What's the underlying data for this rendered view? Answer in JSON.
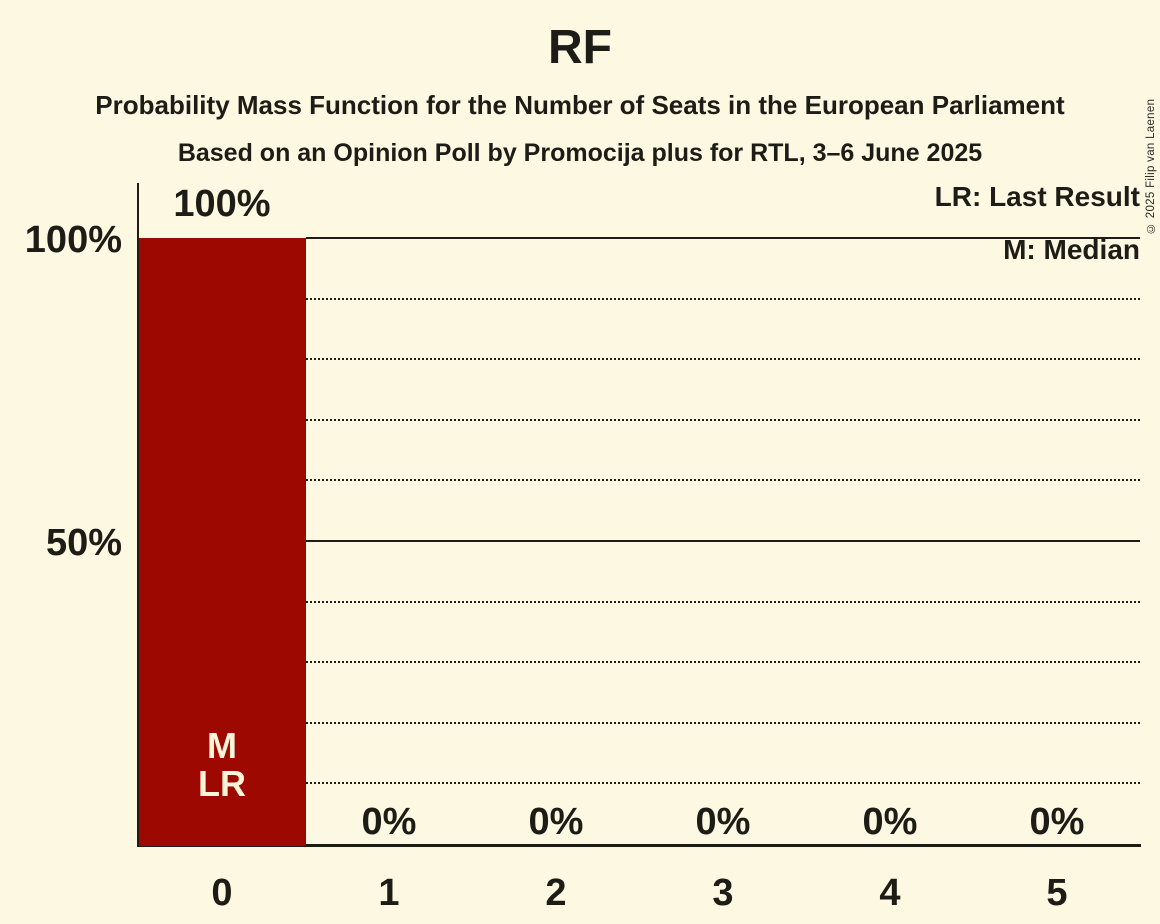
{
  "header": {
    "title": "RF",
    "subtitle": "Probability Mass Function for the Number of Seats in the European Parliament",
    "poll_line": "Based on an Opinion Poll by Promocija plus for RTL, 3–6 June 2025"
  },
  "copyright": "© 2025 Filip van Laenen",
  "legend": {
    "last_result": "LR: Last Result",
    "median": "M: Median"
  },
  "y_axis": {
    "label_100": "100%",
    "label_50": "50%"
  },
  "chart_data": {
    "type": "bar",
    "categories": [
      "0",
      "1",
      "2",
      "3",
      "4",
      "5"
    ],
    "values": [
      100,
      0,
      0,
      0,
      0,
      0
    ],
    "value_labels": [
      "100%",
      "0%",
      "0%",
      "0%",
      "0%",
      "0%"
    ],
    "bar_annotation": {
      "median": "M",
      "last_result": "LR"
    },
    "median_seats": "0",
    "last_result_seats": "0",
    "ylim": [
      0,
      100
    ],
    "y_tick_labels_shown": [
      "100%",
      "50%"
    ],
    "gridlines_pct": [
      10,
      20,
      30,
      40,
      50,
      60,
      70,
      80,
      90,
      100
    ],
    "solid_gridlines_pct": [
      50,
      100
    ],
    "legend_position": "top-right"
  },
  "colors": {
    "background": "#FCF8E2",
    "bar": "#9D0901",
    "text": "#1D1C16",
    "bar_label_text": "#FBF4D8"
  }
}
